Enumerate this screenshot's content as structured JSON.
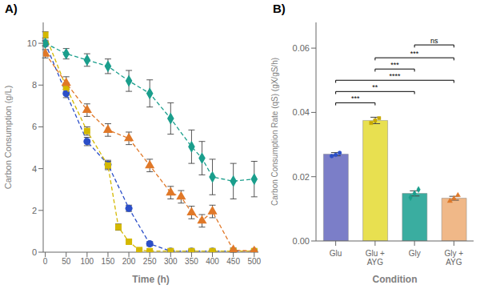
{
  "chart_data": [
    {
      "type": "line",
      "title": "A)",
      "x_label": "Time (h)",
      "y_label": "Carbon Consumption (g/L)",
      "xlim": [
        -5,
        510
      ],
      "ylim": [
        0,
        11
      ],
      "xticks": [
        0,
        50,
        100,
        150,
        200,
        250,
        300,
        350,
        400,
        450,
        500
      ],
      "yticks": [
        0,
        2,
        4,
        6,
        8,
        10
      ],
      "grid": false,
      "series": [
        {
          "color": "#2B4EC8",
          "marker": "circle",
          "line_style": "dashed",
          "x": [
            0,
            50,
            100,
            150,
            200,
            250,
            300,
            350,
            400,
            450,
            500
          ],
          "values": [
            10.0,
            7.6,
            5.3,
            4.2,
            2.1,
            0.4,
            0.05,
            0.05,
            0.05,
            0.05,
            0.05
          ],
          "errors": [
            0.1,
            0.2,
            0.2,
            0.2,
            0.15,
            0.1,
            0.02,
            0.02,
            0.02,
            0.02,
            0.02
          ]
        },
        {
          "color": "#D4B800",
          "marker": "square",
          "line_style": "dashed",
          "x": [
            0,
            50,
            100,
            150,
            175,
            200,
            225,
            250,
            300,
            350,
            400,
            450,
            500
          ],
          "values": [
            10.4,
            7.9,
            5.8,
            4.15,
            1.2,
            0.5,
            0.1,
            0.05,
            0.05,
            0.05,
            0.05,
            0.05,
            0.05
          ],
          "errors": [
            0.15,
            0.2,
            0.2,
            0.2,
            0.15,
            0.08,
            0.05,
            0.02,
            0.02,
            0.02,
            0.02,
            0.02,
            0.02
          ]
        },
        {
          "color": "#1A9E8C",
          "marker": "diamond",
          "line_style": "dashed",
          "x": [
            0,
            50,
            100,
            150,
            200,
            250,
            300,
            350,
            375,
            400,
            450,
            500
          ],
          "values": [
            10.0,
            9.5,
            9.2,
            8.9,
            8.2,
            7.6,
            6.4,
            5.05,
            4.5,
            3.6,
            3.4,
            3.5
          ],
          "errors": [
            0.15,
            0.25,
            0.3,
            0.35,
            0.5,
            0.65,
            0.75,
            0.8,
            0.8,
            0.85,
            0.85,
            0.85
          ]
        },
        {
          "color": "#E07828",
          "marker": "triangle",
          "line_style": "dashed",
          "x": [
            0,
            50,
            100,
            150,
            200,
            250,
            300,
            325,
            350,
            375,
            400,
            450,
            500
          ],
          "values": [
            9.5,
            8.1,
            6.8,
            5.85,
            5.45,
            4.15,
            2.85,
            2.65,
            1.9,
            1.5,
            1.95,
            0.1,
            0.05
          ],
          "errors": [
            0.2,
            0.3,
            0.3,
            0.3,
            0.3,
            0.3,
            0.3,
            0.3,
            0.3,
            0.3,
            0.3,
            0.1,
            0.02
          ]
        }
      ]
    },
    {
      "type": "bar",
      "title": "B)",
      "x_label": "Condition",
      "y_label": "Carbon Consumption Rate (qS) (gX/gS/h)",
      "categories": [
        "Glu",
        "Glu +\nAYG",
        "Gly",
        "Gly +\nAYG"
      ],
      "values": [
        0.027,
        0.0375,
        0.0148,
        0.0133
      ],
      "errors": [
        0.0005,
        0.001,
        0.0008,
        0.0006
      ],
      "colors": [
        "#7B7EC8",
        "#E8E050",
        "#3AADA0",
        "#F0B888"
      ],
      "points": [
        [
          0.0264,
          0.0268,
          0.0274
        ],
        [
          0.0367,
          0.0375,
          0.0382
        ],
        [
          0.0135,
          0.0148,
          0.016
        ],
        [
          0.0124,
          0.0132,
          0.0142
        ]
      ],
      "point_colors": [
        "#2B4EC8",
        "#C8A800",
        "#1A9E8C",
        "#E07828"
      ],
      "point_markers": [
        "circle",
        "square",
        "diamond",
        "triangle"
      ],
      "ylim": [
        0,
        0.068
      ],
      "yticks": [
        {
          "value": 0.0,
          "label": "0.00"
        },
        {
          "value": 0.02,
          "label": "0.02"
        },
        {
          "value": 0.04,
          "label": "0.04"
        },
        {
          "value": 0.06,
          "label": "0.06"
        }
      ],
      "grid": false,
      "significance": [
        {
          "from": "Glu",
          "to": "Glu +\nAYG",
          "y": 0.043,
          "label": "***"
        },
        {
          "from": "Glu",
          "to": "Gly",
          "y": 0.0465,
          "label": "**"
        },
        {
          "from": "Glu",
          "to": "Gly +\nAYG",
          "y": 0.05,
          "label": "****"
        },
        {
          "from": "Glu +\nAYG",
          "to": "Gly",
          "y": 0.0535,
          "label": "***"
        },
        {
          "from": "Glu +\nAYG",
          "to": "Gly +\nAYG",
          "y": 0.057,
          "label": "***"
        },
        {
          "from": "Gly",
          "to": "Gly +\nAYG",
          "y": 0.061,
          "label": "ns"
        }
      ]
    }
  ]
}
